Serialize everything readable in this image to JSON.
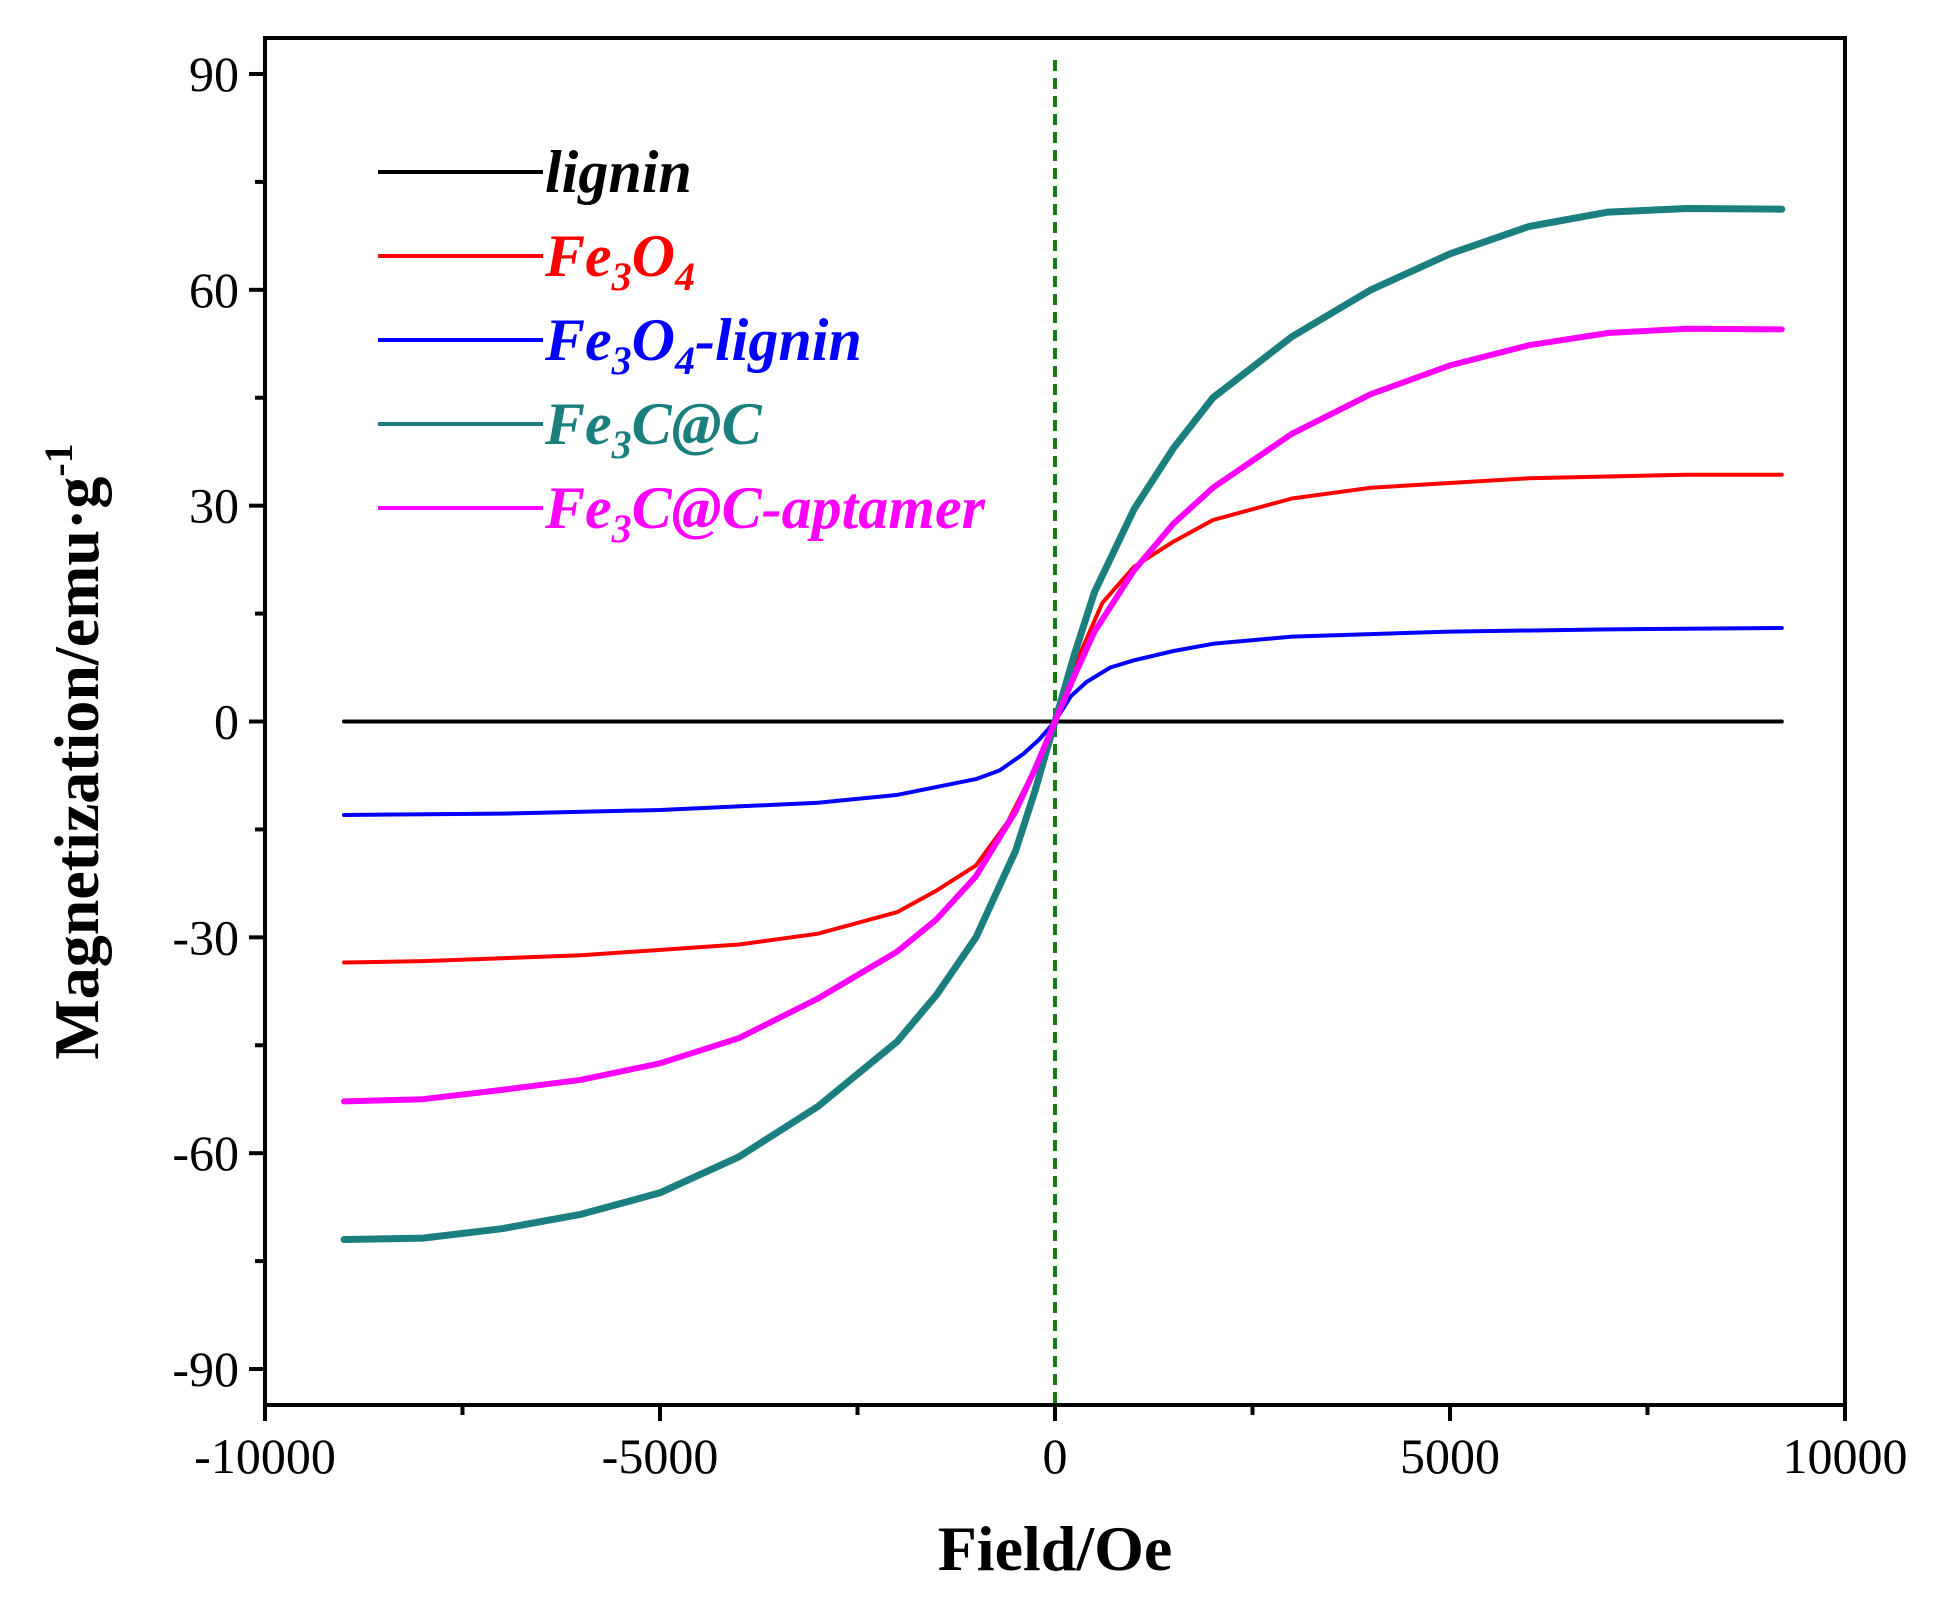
{
  "chart_data": {
    "type": "line",
    "title": "",
    "xlabel": "Field/Oe",
    "ylabel": "Magnetization/emu·g",
    "ylabel_sup": "-1",
    "xlim": [
      -10000,
      10000
    ],
    "ylim": [
      -95,
      95
    ],
    "x_ticks": [
      -10000,
      -5000,
      0,
      5000,
      10000
    ],
    "x_tick_labels": [
      "-10000",
      "-5000",
      "0",
      "5000",
      "10000"
    ],
    "y_ticks": [
      -90,
      -60,
      -30,
      0,
      30,
      60,
      90
    ],
    "y_tick_labels": [
      "-90",
      "-60",
      "-30",
      "0",
      "30",
      "60",
      "90"
    ],
    "reference_line": {
      "x": 0,
      "color": "#1a7a1a",
      "style": "dashed"
    },
    "legend_position": "top-left",
    "series": [
      {
        "name": "lignin",
        "legend_parts": [
          {
            "t": "lignin"
          }
        ],
        "color": "#000000",
        "x": [
          -9000,
          9200
        ],
        "y": [
          0,
          0
        ]
      },
      {
        "name": "Fe3O4",
        "legend_parts": [
          {
            "t": "Fe"
          },
          {
            "t": "3",
            "sub": true
          },
          {
            "t": "O"
          },
          {
            "t": "4",
            "sub": true
          }
        ],
        "color": "#ff0000",
        "x": [
          -9000,
          -8000,
          -6000,
          -4000,
          -3000,
          -2000,
          -1500,
          -1000,
          -600,
          -300,
          0,
          300,
          600,
          1000,
          1500,
          2000,
          3000,
          4000,
          6000,
          8000,
          9200
        ],
        "y": [
          -33.5,
          -33.3,
          -32.5,
          -31,
          -29.5,
          -26.5,
          -23.5,
          -20,
          -14,
          -7.5,
          0,
          9,
          16.5,
          21.5,
          25,
          28,
          31,
          32.5,
          33.8,
          34.3,
          34.3
        ]
      },
      {
        "name": "Fe3O4-lignin",
        "legend_parts": [
          {
            "t": "Fe"
          },
          {
            "t": "3",
            "sub": true
          },
          {
            "t": "O"
          },
          {
            "t": "4",
            "sub": true
          },
          {
            "t": "-lignin"
          }
        ],
        "color": "#0000ff",
        "x": [
          -9000,
          -7000,
          -5000,
          -3000,
          -2000,
          -1000,
          -700,
          -400,
          -200,
          0,
          200,
          400,
          700,
          1000,
          1500,
          2000,
          3000,
          5000,
          7000,
          9200
        ],
        "y": [
          -13,
          -12.8,
          -12.3,
          -11.3,
          -10.2,
          -8,
          -6.8,
          -4.5,
          -2.5,
          0,
          3.5,
          5.5,
          7.5,
          8.5,
          9.8,
          10.8,
          11.8,
          12.5,
          12.8,
          13
        ]
      },
      {
        "name": "Fe3C@C",
        "legend_parts": [
          {
            "t": "Fe"
          },
          {
            "t": "3",
            "sub": true
          },
          {
            "t": "C@C"
          }
        ],
        "color": "#1b7f7f",
        "x": [
          -9000,
          -8000,
          -7000,
          -6000,
          -5000,
          -4000,
          -3000,
          -2000,
          -1500,
          -1000,
          -500,
          -250,
          0,
          250,
          500,
          1000,
          1500,
          2000,
          3000,
          4000,
          5000,
          6000,
          7000,
          8000,
          9200
        ],
        "y": [
          -72,
          -71.8,
          -70.5,
          -68.5,
          -65.5,
          -60.5,
          -53.5,
          -44.5,
          -38,
          -30,
          -18,
          -9.5,
          0,
          9.5,
          18,
          29.5,
          38,
          45,
          53.5,
          60,
          65,
          68.8,
          70.8,
          71.3,
          71.2
        ]
      },
      {
        "name": "Fe3C@C-aptamer",
        "legend_parts": [
          {
            "t": "Fe"
          },
          {
            "t": "3",
            "sub": true
          },
          {
            "t": "C@C-aptamer"
          }
        ],
        "color": "#ff00ff",
        "x": [
          -9000,
          -8000,
          -7000,
          -6000,
          -5000,
          -4000,
          -3000,
          -2000,
          -1500,
          -1000,
          -500,
          -250,
          0,
          250,
          500,
          1000,
          1500,
          2000,
          3000,
          4000,
          5000,
          6000,
          7000,
          8000,
          9200
        ],
        "y": [
          -52.8,
          -52.5,
          -51.2,
          -49.8,
          -47.5,
          -44,
          -38.5,
          -32,
          -27.5,
          -21.5,
          -12.5,
          -6.5,
          0,
          6.5,
          12.5,
          21,
          27.5,
          32.5,
          40,
          45.5,
          49.5,
          52.3,
          54,
          54.6,
          54.5
        ]
      }
    ]
  }
}
